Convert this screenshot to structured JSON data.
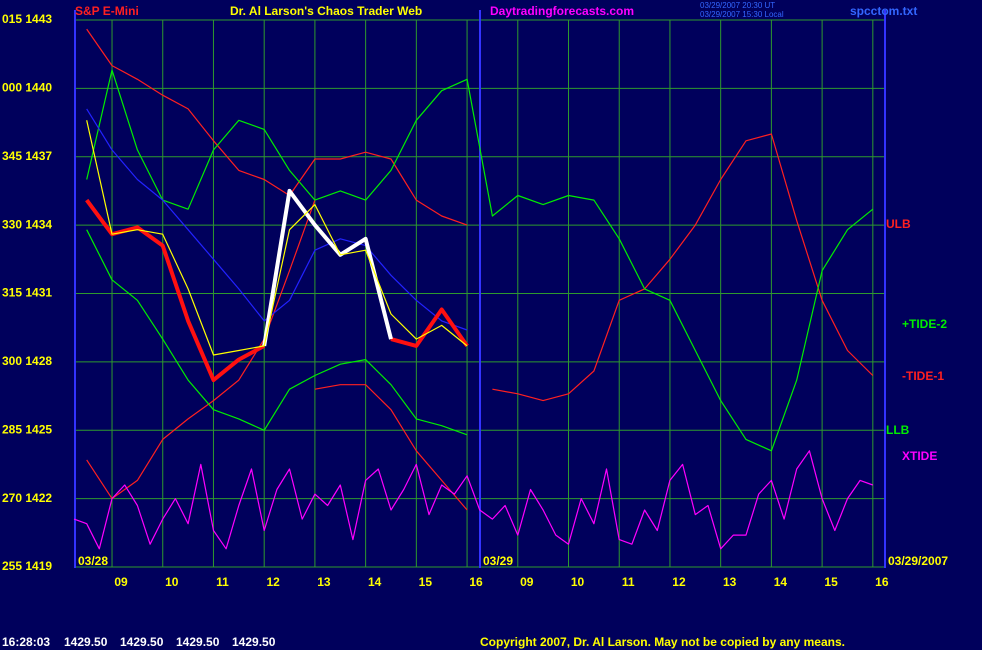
{
  "chart_data": {
    "type": "line",
    "title": "Dr. Al Larson's Chaos Trader Web",
    "subtitle": "S&P E-Mini",
    "site": "Daytradingforecasts.com",
    "timestamp_ut": "03/29/2007 20:30 UT",
    "timestamp_local": "03/29/2007 15:30 Local",
    "file": "spcctom.txt",
    "quote_time": "16:28:03",
    "quotes": [
      "1429.50",
      "1429.50",
      "1429.50",
      "1429.50"
    ],
    "copyright": "Copyright 2007, Dr. Al Larson. May not be copied by any means.",
    "date_labels": [
      "03/28",
      "03/29",
      "03/29/2007"
    ],
    "labels": [
      {
        "text": "ULB",
        "color": "#ff2020"
      },
      {
        "text": "+TIDE-2",
        "color": "#00ee00"
      },
      {
        "text": "-TIDE-1",
        "color": "#ff2020"
      },
      {
        "text": "LLB",
        "color": "#00ee00"
      },
      {
        "text": "XTIDE",
        "color": "#ff00ff"
      }
    ],
    "xlim": [
      0.27,
      16.24
    ],
    "ylim": [
      1419,
      1443
    ],
    "grid": true,
    "xticks": [
      {
        "value": 1,
        "label": "09"
      },
      {
        "value": 2,
        "label": "10"
      },
      {
        "value": 3,
        "label": "11"
      },
      {
        "value": 4,
        "label": "12"
      },
      {
        "value": 5,
        "label": "13"
      },
      {
        "value": 6,
        "label": "14"
      },
      {
        "value": 7,
        "label": "15"
      },
      {
        "value": 8,
        "label": "16"
      },
      {
        "value": 9,
        "label": "09"
      },
      {
        "value": 10,
        "label": "10"
      },
      {
        "value": 11,
        "label": "11"
      },
      {
        "value": 12,
        "label": "12"
      },
      {
        "value": 13,
        "label": "13"
      },
      {
        "value": 14,
        "label": "14"
      },
      {
        "value": 15,
        "label": "15"
      },
      {
        "value": 16,
        "label": "16"
      }
    ],
    "yticks": [
      {
        "value": 1443,
        "label": "015 1443"
      },
      {
        "value": 1440,
        "label": "000 1440"
      },
      {
        "value": 1437,
        "label": "345 1437"
      },
      {
        "value": 1434,
        "label": "330 1434"
      },
      {
        "value": 1431,
        "label": "315 1431"
      },
      {
        "value": 1428,
        "label": "300 1428"
      },
      {
        "value": 1425,
        "label": "285 1425"
      },
      {
        "value": 1422,
        "label": "270 1422"
      },
      {
        "value": 1419,
        "label": "255 1419"
      }
    ],
    "x": [
      0.5,
      1,
      1.5,
      2,
      2.5,
      3,
      3.5,
      4,
      4.5,
      5,
      5.5,
      6,
      6.5,
      7,
      7.5,
      8,
      8.5,
      9,
      9.5,
      10,
      10.5,
      11,
      11.5,
      12,
      12.5,
      13,
      13.5,
      14,
      14.5,
      15,
      15.5,
      16
    ],
    "series": [
      {
        "color": "#ff2020",
        "values": [
          1442.6,
          1441.0,
          1440.4,
          1439.7,
          1439.1,
          1437.7,
          1436.4,
          1436.0,
          1435.3,
          1436.9,
          1436.9,
          1437.2,
          1436.9,
          1435.1,
          1434.4,
          1434.0,
          null,
          null,
          null,
          null,
          null,
          null,
          null,
          null,
          null,
          null,
          null,
          null,
          null,
          null,
          null,
          null
        ]
      },
      {
        "color": "#ff2020",
        "values": [
          1423.7,
          1422.0,
          1422.8,
          1424.6,
          1425.5,
          1426.3,
          1427.2,
          1429.0,
          1432.0,
          1435.1,
          null,
          null,
          null,
          null,
          null,
          null,
          1426.8,
          1426.6,
          1426.3,
          1426.6,
          1427.6,
          1430.7,
          1431.2,
          1432.5,
          1434.0,
          1436.0,
          1437.7,
          1438.0,
          1434.2,
          1430.7,
          1428.5,
          1427.4
        ]
      },
      {
        "color": "#ff2020",
        "values": [
          null,
          null,
          null,
          null,
          null,
          null,
          null,
          null,
          null,
          1426.8,
          1427.0,
          1427.0,
          1425.9,
          1424.1,
          1422.8,
          1421.5,
          null,
          null,
          null,
          null,
          null,
          null,
          null,
          null,
          null,
          null,
          null,
          null,
          null,
          null,
          null,
          null
        ]
      },
      {
        "color": "#00ee00",
        "values": [
          1436.0,
          1440.8,
          1437.3,
          1435.1,
          1434.7,
          1437.3,
          1438.6,
          1438.2,
          1436.4,
          1435.1,
          1435.5,
          1435.1,
          1436.4,
          1438.6,
          1439.9,
          1440.4,
          1434.4,
          1435.3,
          1434.9,
          1435.3,
          1435.1,
          1433.4,
          1431.2,
          1430.7,
          1428.5,
          1426.3,
          1424.6,
          1424.1,
          1427.2,
          1432.0,
          1433.8,
          1434.7
        ]
      },
      {
        "color": "#00ee00",
        "values": [
          1433.8,
          1431.6,
          1430.7,
          1429.0,
          1427.2,
          1425.9,
          1425.5,
          1425.0,
          1426.8,
          1427.4,
          1427.9,
          1428.1,
          1427.0,
          1425.5,
          1425.2,
          1424.8,
          null,
          null,
          null,
          null,
          null,
          null,
          null,
          null,
          null,
          null,
          null,
          null,
          null,
          null,
          null,
          null
        ]
      },
      {
        "color": "#2222ff",
        "values": [
          1439.1,
          1437.3,
          1436.0,
          1435.1,
          1433.8,
          1432.5,
          1431.2,
          1429.8,
          1430.7,
          1432.9,
          1433.4,
          1433.1,
          1431.8,
          1430.7,
          1429.8,
          1429.4,
          null,
          null,
          null,
          null,
          null,
          null,
          null,
          null,
          null,
          null,
          null,
          null,
          null,
          null,
          null,
          null
        ]
      },
      {
        "color": "#ff1010",
        "width": 4,
        "values": [
          1435.1,
          1433.6,
          1433.9,
          1433.1,
          1429.8,
          1427.2,
          1428.1,
          1428.7,
          null,
          null,
          null,
          null,
          1429.0,
          1428.7,
          1430.3,
          1428.7,
          null,
          null,
          null,
          null,
          null,
          null,
          null,
          null,
          null,
          null,
          null,
          null,
          null,
          null,
          null,
          null
        ]
      },
      {
        "color": "#ffffff",
        "width": 4,
        "values": [
          null,
          null,
          null,
          null,
          null,
          null,
          null,
          1428.7,
          1435.5,
          1434.0,
          1432.7,
          1433.4,
          1429.0,
          null,
          null,
          null,
          null,
          null,
          null,
          null,
          null,
          null,
          null,
          null,
          null,
          null,
          null,
          null,
          null,
          null,
          null,
          null
        ]
      },
      {
        "color": "#ffff00",
        "values": [
          1438.6,
          1433.6,
          1433.8,
          1433.6,
          1431.2,
          1428.3,
          1428.5,
          1428.7,
          1433.8,
          1434.9,
          1432.7,
          1432.9,
          1430.1,
          1429.0,
          1429.6,
          1428.7,
          null,
          null,
          null,
          null,
          null,
          null,
          null,
          null,
          null,
          null,
          null,
          null,
          null,
          null,
          null,
          null
        ]
      },
      {
        "color": "#ff00ff",
        "x": [
          0.25,
          0.5,
          0.75,
          1,
          1.25,
          1.5,
          1.75,
          2,
          2.25,
          2.5,
          2.75,
          3,
          3.25,
          3.5,
          3.75,
          4,
          4.25,
          4.5,
          4.75,
          5,
          5.25,
          5.5,
          5.75,
          6,
          6.25,
          6.5,
          6.75,
          7,
          7.25,
          7.5,
          7.75,
          8,
          8.25,
          8.5,
          8.75,
          9,
          9.25,
          9.5,
          9.75,
          10,
          10.25,
          10.5,
          10.75,
          11,
          11.25,
          11.5,
          11.75,
          12,
          12.25,
          12.5,
          12.75,
          13,
          13.25,
          13.5,
          13.75,
          14,
          14.25,
          14.5,
          14.75,
          15,
          15.25,
          15.5,
          15.75,
          16
        ],
        "values": [
          1421.1,
          1420.9,
          1419.8,
          1422.0,
          1422.6,
          1421.7,
          1420.0,
          1421.1,
          1422.0,
          1420.9,
          1423.5,
          1420.6,
          1419.8,
          1421.7,
          1423.3,
          1420.6,
          1422.4,
          1423.3,
          1421.1,
          1422.2,
          1421.7,
          1422.6,
          1420.2,
          1422.8,
          1423.3,
          1421.5,
          1422.4,
          1423.5,
          1421.3,
          1422.6,
          1422.2,
          1423.0,
          1421.5,
          1421.1,
          1421.7,
          1420.4,
          1422.4,
          1421.5,
          1420.4,
          1420.0,
          1422.0,
          1420.9,
          1423.3,
          1420.2,
          1420.0,
          1421.5,
          1420.6,
          1422.8,
          1423.5,
          1421.3,
          1421.7,
          1419.8,
          1420.4,
          1420.4,
          1422.2,
          1422.8,
          1421.1,
          1423.3,
          1424.1,
          1422.0,
          1420.6,
          1422.0,
          1422.8,
          1422.6
        ]
      }
    ]
  }
}
